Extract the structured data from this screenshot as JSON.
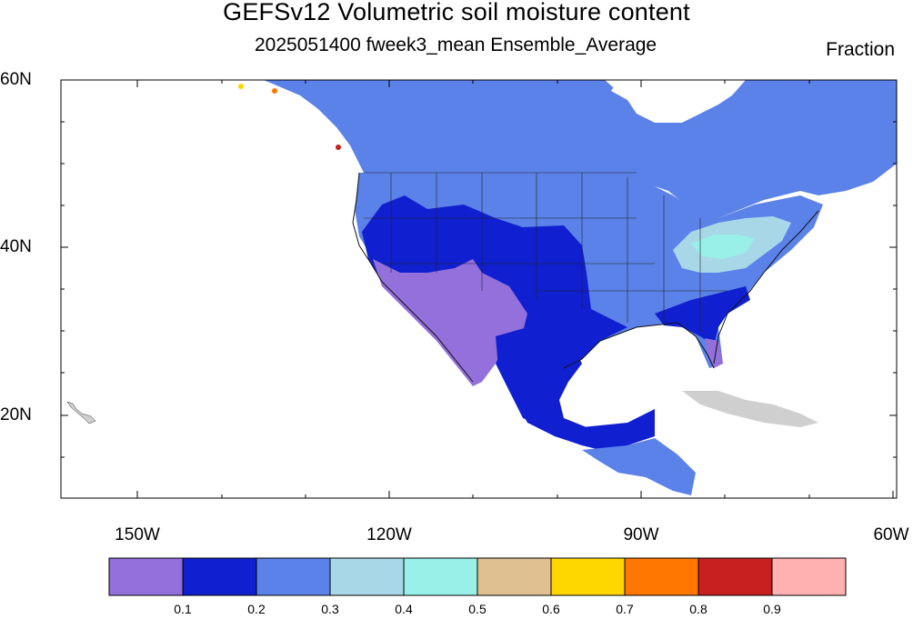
{
  "title": "GEFSv12 Volumetric soil moisture content",
  "subtitle": "2025051400 fweek3_mean Ensemble_Average",
  "units": "Fraction",
  "lat_labels": [
    "60N",
    "40N",
    "20N"
  ],
  "lon_labels": [
    "150W",
    "120W",
    "90W",
    "60W"
  ],
  "colorbar": {
    "colors": [
      "#9370db",
      "#1020d0",
      "#5b82e8",
      "#a8d8e8",
      "#98f0e8",
      "#dfc090",
      "#ffd700",
      "#ff7700",
      "#c82020",
      "#ffb0b0"
    ],
    "labels": [
      "0.1",
      "0.2",
      "0.3",
      "0.4",
      "0.5",
      "0.6",
      "0.7",
      "0.8",
      "0.9"
    ]
  },
  "colors": {
    "land_nodata": "#cfcfcf",
    "ocean": "#ffffff",
    "state_lines": "#111111"
  }
}
